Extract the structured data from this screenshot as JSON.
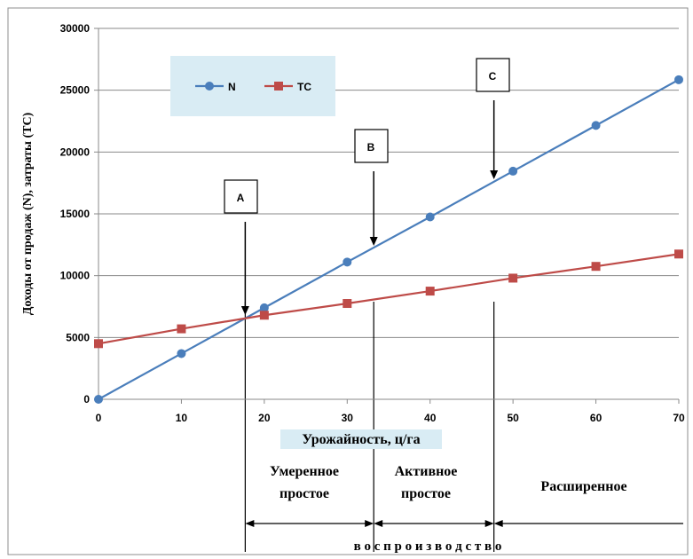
{
  "chart_data": {
    "type": "line",
    "title": "",
    "xlabel": "Урожайность, ц/га",
    "ylabel": "Доходы от продаж (N), затраты  (ТС)",
    "x": [
      0,
      10,
      20,
      30,
      40,
      50,
      60,
      70
    ],
    "xlim": [
      0,
      70
    ],
    "ylim": [
      0,
      30000
    ],
    "x_ticks": [
      "0",
      "10",
      "20",
      "30",
      "40",
      "50",
      "60",
      "70"
    ],
    "y_ticks": [
      "0",
      "5000",
      "10000",
      "15000",
      "20000",
      "25000",
      "30000"
    ],
    "grid": "horizontal",
    "legend_position": "top-left",
    "series": [
      {
        "name": "N",
        "color": "#4a7ebb",
        "marker": "circle",
        "values": [
          0,
          3700,
          7400,
          11100,
          14750,
          18450,
          22150,
          25850
        ]
      },
      {
        "name": "ТС",
        "color": "#be4b48",
        "marker": "square",
        "values": [
          4500,
          5700,
          6800,
          7750,
          8750,
          9800,
          10750,
          11750
        ]
      }
    ],
    "markers": [
      {
        "label": "A",
        "x": 17.7
      },
      {
        "label": "B",
        "x": 33.2
      },
      {
        "label": "C",
        "x": 47.7
      }
    ],
    "zones": [
      {
        "label_line1": "Умеренное",
        "label_line2": "простое",
        "from": 17.7,
        "to": 33.2
      },
      {
        "label_line1": "Активное",
        "label_line2": "простое",
        "from": 33.2,
        "to": 47.7
      },
      {
        "label_line1": "Расширенное",
        "label_line2": "",
        "from": 47.7,
        "to": 70
      }
    ],
    "bottom_caption": "в о с п р о и з в о д с т в о"
  }
}
